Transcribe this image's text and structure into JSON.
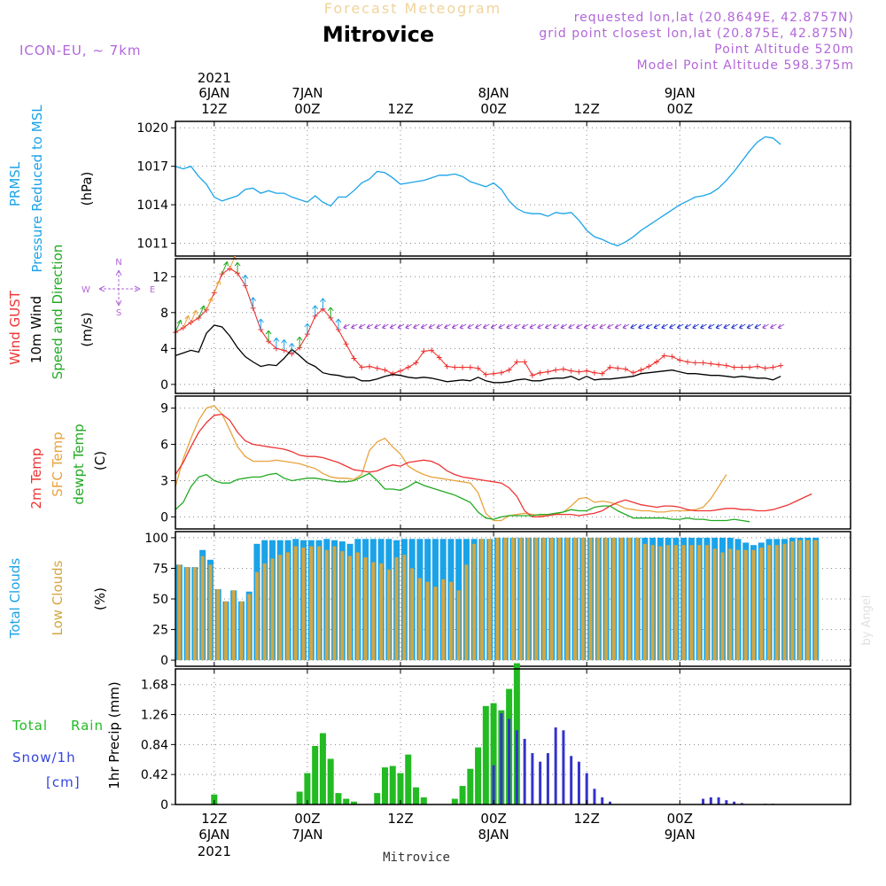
{
  "header": {
    "subtitle": "Forecast Meteogram",
    "location": "Mitrovice",
    "model": "ICON-EU, ~ 7km",
    "requested": "requested lon,lat (20.8649E, 42.8757N)",
    "grid": "grid point closest lon,lat (20.875E, 42.875N)",
    "altitude": "Point Altitude 520m",
    "model_altitude": "Model Point Altitude 598.375m"
  },
  "footer": {
    "location": "Mitrovice",
    "watermark": "by Angel"
  },
  "time_axis": {
    "start_hour": 7,
    "hours": 87,
    "top_ticks": [
      {
        "h": 12,
        "l1": "2021",
        "l2": "6JAN",
        "l3": "12Z"
      },
      {
        "h": 24,
        "l2": "7JAN",
        "l3": "00Z"
      },
      {
        "h": 36,
        "l3": "12Z"
      },
      {
        "h": 48,
        "l2": "8JAN",
        "l3": "00Z"
      },
      {
        "h": 60,
        "l3": "12Z"
      },
      {
        "h": 72,
        "l2": "9JAN",
        "l3": "00Z"
      }
    ],
    "bottom_ticks": [
      {
        "h": 12,
        "l1": "12Z",
        "l2": "6JAN",
        "l3": "2021"
      },
      {
        "h": 24,
        "l1": "00Z",
        "l2": "7JAN"
      },
      {
        "h": 36,
        "l1": "12Z"
      },
      {
        "h": 48,
        "l1": "00Z",
        "l2": "8JAN"
      },
      {
        "h": 60,
        "l1": "12Z"
      },
      {
        "h": 72,
        "l1": "00Z",
        "l2": "9JAN"
      }
    ]
  },
  "chart_data": [
    {
      "id": "pressure",
      "type": "line",
      "ylabel": [
        "PRMSL",
        "Pressure Reduced to MSL",
        "(hPa)"
      ],
      "ylim": [
        1010,
        1020.5
      ],
      "yticks": [
        1011,
        1014,
        1017,
        1020
      ],
      "colors": {
        "line": "#1aa3e8"
      },
      "series": [
        {
          "name": "PRMSL",
          "values": [
            1017.0,
            1016.8,
            1017.0,
            1016.2,
            1015.6,
            1014.6,
            1014.3,
            1014.5,
            1014.7,
            1015.2,
            1015.3,
            1014.9,
            1015.1,
            1014.9,
            1014.9,
            1014.6,
            1014.4,
            1014.2,
            1014.7,
            1014.2,
            1013.9,
            1014.6,
            1014.6,
            1015.1,
            1015.7,
            1016.0,
            1016.6,
            1016.5,
            1016.1,
            1015.6,
            1015.7,
            1015.8,
            1015.9,
            1016.1,
            1016.3,
            1016.3,
            1016.4,
            1016.2,
            1015.8,
            1015.6,
            1015.4,
            1015.7,
            1015.2,
            1014.3,
            1013.7,
            1013.4,
            1013.3,
            1013.3,
            1013.1,
            1013.4,
            1013.3,
            1013.4,
            1012.8,
            1012.0,
            1011.5,
            1011.3,
            1011.0,
            1010.8,
            1011.1,
            1011.5,
            1012.0,
            1012.4,
            1012.8,
            1013.2,
            1013.6,
            1014.0,
            1014.3,
            1014.6,
            1014.7,
            1014.9,
            1015.3,
            1015.9,
            1016.6,
            1017.4,
            1018.2,
            1018.9,
            1019.3,
            1019.2,
            1018.7
          ]
        }
      ]
    },
    {
      "id": "wind",
      "type": "line",
      "ylabel": [
        "Wind GUST",
        "10m Wind",
        "(m/s)",
        "Speed and Direction"
      ],
      "ylim": [
        -1,
        14
      ],
      "yticks": [
        0,
        4,
        8,
        12
      ],
      "compass": {
        "n": "N",
        "s": "S",
        "e": "E",
        "w": "W"
      },
      "colors": {
        "gust": "#ee3333",
        "wind": "#000000",
        "arrow_strong": "#1aa3e8",
        "arrow_weak": "#9a44cc",
        "arrow_green": "#22aa22",
        "arrow_orange": "#e8a33d",
        "arrow_blue": "#2233cc"
      },
      "series": [
        {
          "name": "Wind GUST",
          "values": [
            5.8,
            6.3,
            6.9,
            7.4,
            8.3,
            10.2,
            12.3,
            12.9,
            12.4,
            11.0,
            8.5,
            6.1,
            4.8,
            4.0,
            3.8,
            3.4,
            4.1,
            5.6,
            7.6,
            8.4,
            7.4,
            6.1,
            4.5,
            2.9,
            1.9,
            2.0,
            1.8,
            1.6,
            1.2,
            1.5,
            1.9,
            2.4,
            3.7,
            3.8,
            3.0,
            2.0,
            1.9,
            1.9,
            1.9,
            1.8,
            1.1,
            1.2,
            1.3,
            1.6,
            2.5,
            2.5,
            1.0,
            1.3,
            1.4,
            1.6,
            1.7,
            1.5,
            1.4,
            1.5,
            1.3,
            1.2,
            1.9,
            1.8,
            1.7,
            1.3,
            1.6,
            2.0,
            2.5,
            3.2,
            3.1,
            2.7,
            2.5,
            2.4,
            2.4,
            2.3,
            2.2,
            2.1,
            1.9,
            1.9,
            1.9,
            2.0,
            1.8,
            1.9,
            2.1
          ]
        },
        {
          "name": "10m Wind",
          "values": [
            3.2,
            3.5,
            3.8,
            3.6,
            5.7,
            6.6,
            6.4,
            5.4,
            4.1,
            3.1,
            2.5,
            2.0,
            2.2,
            2.1,
            2.9,
            3.9,
            3.2,
            2.4,
            2.0,
            1.3,
            1.1,
            1.0,
            0.8,
            0.8,
            0.4,
            0.4,
            0.6,
            0.9,
            1.1,
            1.0,
            0.8,
            0.7,
            0.8,
            0.7,
            0.5,
            0.3,
            0.4,
            0.5,
            0.4,
            0.8,
            0.4,
            0.2,
            0.2,
            0.3,
            0.5,
            0.6,
            0.4,
            0.4,
            0.6,
            0.7,
            0.7,
            0.9,
            0.5,
            0.9,
            0.5,
            0.6,
            0.6,
            0.7,
            0.8,
            0.9,
            1.2,
            1.3,
            1.4,
            1.5,
            1.6,
            1.4,
            1.2,
            1.2,
            1.1,
            1.0,
            1.0,
            0.9,
            0.8,
            0.9,
            0.8,
            0.7,
            0.7,
            0.5,
            0.9
          ]
        }
      ]
    },
    {
      "id": "temperature",
      "type": "line",
      "ylabel": [
        "2m Temp",
        "SFC Temp",
        "dewpt Temp",
        "(C)"
      ],
      "ylim": [
        -1,
        10
      ],
      "yticks": [
        0,
        3,
        6,
        9
      ],
      "colors": {
        "t2m": "#ee3333",
        "sfc": "#e8a33d",
        "dew": "#22aa22"
      },
      "series": [
        {
          "name": "2m Temp",
          "values": [
            3.5,
            4.5,
            5.8,
            7.0,
            7.8,
            8.4,
            8.5,
            8.0,
            7.0,
            6.3,
            6.0,
            5.9,
            5.8,
            5.7,
            5.6,
            5.4,
            5.1,
            5.0,
            5.0,
            4.9,
            4.7,
            4.5,
            4.2,
            3.9,
            3.8,
            3.7,
            3.8,
            4.1,
            4.3,
            4.2,
            4.5,
            4.6,
            4.7,
            4.6,
            4.3,
            3.8,
            3.5,
            3.3,
            3.2,
            3.1,
            3.0,
            2.9,
            2.8,
            2.4,
            1.7,
            0.5,
            0.0,
            0.0,
            0.1,
            0.2,
            0.2,
            0.2,
            0.1,
            0.2,
            0.3,
            0.5,
            0.9,
            1.2,
            1.4,
            1.2,
            1.0,
            0.9,
            0.8,
            0.9,
            0.9,
            0.8,
            0.6,
            0.5,
            0.5,
            0.5,
            0.6,
            0.7,
            0.7,
            0.6,
            0.6,
            0.5,
            0.5,
            0.6,
            0.8,
            1.0,
            1.3,
            1.6,
            1.9
          ]
        },
        {
          "name": "SFC Temp",
          "values": [
            2.5,
            4.8,
            6.5,
            8.0,
            9.0,
            9.2,
            8.5,
            7.2,
            5.8,
            5.0,
            4.6,
            4.6,
            4.6,
            4.7,
            4.6,
            4.5,
            4.4,
            4.2,
            4.0,
            3.6,
            3.3,
            3.2,
            3.2,
            3.1,
            3.5,
            5.5,
            6.2,
            6.5,
            5.8,
            5.2,
            4.2,
            3.8,
            3.5,
            3.3,
            3.2,
            3.1,
            3.0,
            2.9,
            2.8,
            2.0,
            0.3,
            -0.3,
            -0.3,
            0.1,
            0.2,
            0.3,
            0.2,
            0.1,
            0.1,
            0.2,
            0.4,
            0.9,
            1.5,
            1.6,
            1.2,
            1.3,
            1.2,
            1.0,
            0.7,
            0.6,
            0.5,
            0.5,
            0.4,
            0.4,
            0.5,
            0.5,
            0.5,
            0.6,
            0.8,
            1.5,
            2.5,
            3.5
          ]
        },
        {
          "name": "dewpt Temp",
          "values": [
            0.6,
            1.2,
            2.5,
            3.3,
            3.5,
            3.0,
            2.8,
            2.8,
            3.1,
            3.2,
            3.3,
            3.3,
            3.5,
            3.6,
            3.2,
            3.0,
            3.1,
            3.2,
            3.2,
            3.1,
            3.0,
            2.9,
            2.9,
            3.0,
            3.3,
            3.6,
            3.0,
            2.3,
            2.3,
            2.2,
            2.5,
            2.9,
            2.6,
            2.4,
            2.2,
            2.0,
            1.8,
            1.5,
            1.2,
            0.4,
            -0.1,
            -0.2,
            0.0,
            0.1,
            0.1,
            0.1,
            0.1,
            0.2,
            0.2,
            0.3,
            0.4,
            0.6,
            0.5,
            0.5,
            0.8,
            0.9,
            0.9,
            0.5,
            0.2,
            -0.1,
            -0.1,
            -0.1,
            -0.1,
            -0.1,
            -0.2,
            -0.2,
            -0.1,
            -0.2,
            -0.2,
            -0.3,
            -0.3,
            -0.3,
            -0.2,
            -0.3,
            -0.4
          ]
        }
      ]
    },
    {
      "id": "clouds",
      "type": "bar",
      "ylabel": [
        "Total Clouds",
        "Low Clouds",
        "(%)"
      ],
      "ylim": [
        -5,
        105
      ],
      "yticks": [
        0,
        25,
        50,
        75,
        100
      ],
      "colors": {
        "total": "#1aa3e8",
        "low": "#d4a640"
      },
      "series": [
        {
          "name": "Total Clouds",
          "values": [
            78,
            76,
            76,
            90,
            82,
            58,
            48,
            57,
            48,
            56,
            95,
            98,
            98,
            98,
            98,
            99,
            98,
            98,
            98,
            99,
            98,
            97,
            95,
            99,
            99,
            99,
            99,
            99,
            98,
            99,
            99,
            99,
            99,
            99,
            99,
            99,
            99,
            99,
            99,
            99,
            99,
            100,
            100,
            100,
            100,
            100,
            100,
            100,
            100,
            100,
            100,
            100,
            100,
            100,
            100,
            100,
            100,
            100,
            100,
            100,
            100,
            100,
            100,
            100,
            100,
            100,
            100,
            100,
            100,
            100,
            100,
            100,
            99,
            96,
            94,
            96,
            99,
            99,
            99,
            100,
            100,
            100,
            100
          ]
        },
        {
          "name": "Low Clouds",
          "values": [
            78,
            76,
            76,
            85,
            78,
            58,
            48,
            57,
            48,
            54,
            72,
            79,
            83,
            86,
            88,
            93,
            92,
            93,
            93,
            90,
            93,
            89,
            85,
            88,
            84,
            80,
            79,
            74,
            84,
            86,
            75,
            67,
            64,
            60,
            66,
            64,
            57,
            78,
            95,
            99,
            99,
            100,
            100,
            100,
            100,
            100,
            100,
            100,
            100,
            100,
            100,
            100,
            100,
            100,
            100,
            100,
            100,
            100,
            100,
            100,
            95,
            94,
            93,
            94,
            94,
            94,
            94,
            94,
            94,
            91,
            88,
            91,
            90,
            90,
            90,
            92,
            94,
            94,
            95,
            97,
            98,
            98,
            98
          ]
        }
      ]
    },
    {
      "id": "precip",
      "type": "bar",
      "ylabel": [
        "Total",
        "Rain",
        "Snow/1h",
        "[cm]",
        "1hr Precip (mm)"
      ],
      "ylim": [
        0,
        1.9
      ],
      "yticks": [
        0,
        0.42,
        0.84,
        1.26,
        1.68
      ],
      "colors": {
        "rain": "#22bb22",
        "snow": "#3333cc"
      },
      "series": [
        {
          "name": "Rain",
          "values": [
            0,
            0,
            0,
            0,
            0.14,
            0,
            0,
            0,
            0,
            0,
            0,
            0,
            0,
            0,
            0,
            0.18,
            0.44,
            0.82,
            1.0,
            0.64,
            0.16,
            0.08,
            0.04,
            0,
            0,
            0.16,
            0.52,
            0.54,
            0.44,
            0.7,
            0.24,
            0.1,
            0,
            0,
            0,
            0.08,
            0.26,
            0.5,
            0.8,
            1.38,
            1.42,
            1.32,
            1.62,
            1.98
          ]
        },
        {
          "name": "Snow",
          "values": [
            0.55,
            1.28,
            1.2,
            1.04,
            0.92,
            0.72,
            0.6,
            0.72,
            1.08,
            1.04,
            0.68,
            0.6,
            0.44,
            0.22,
            0.1,
            0.04,
            0,
            0,
            0,
            0,
            0,
            0,
            0,
            0,
            0,
            0,
            0,
            0.08,
            0.1,
            0.1,
            0.06,
            0.04,
            0.02,
            0,
            0,
            0.01,
            0.01
          ]
        }
      ]
    }
  ]
}
